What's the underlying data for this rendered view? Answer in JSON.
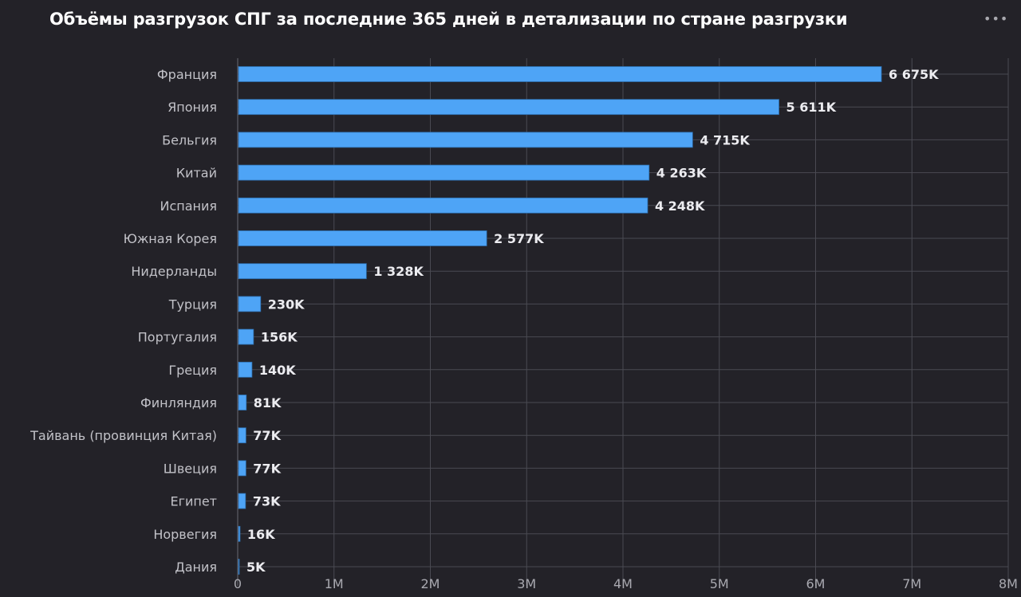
{
  "header": {
    "title": "Объёмы разгрузок СПГ за последние 365 дней в детализации по стране разгрузки",
    "menu_icon": "more-horizontal-icon",
    "menu_glyph": "•••"
  },
  "chart_data": {
    "type": "bar",
    "orientation": "horizontal",
    "title": "Объёмы разгрузок СПГ за последние 365 дней в детализации по стране разгрузки",
    "categories": [
      "Франция",
      "Япония",
      "Бельгия",
      "Китай",
      "Испания",
      "Южная Корея",
      "Нидерланды",
      "Турция",
      "Португалия",
      "Греция",
      "Финляндия",
      "Тайвань (провинция Китая)",
      "Швеция",
      "Египет",
      "Норвегия",
      "Дания"
    ],
    "values": [
      6675000,
      5611000,
      4715000,
      4263000,
      4248000,
      2577000,
      1328000,
      230000,
      156000,
      140000,
      81000,
      77000,
      77000,
      73000,
      16000,
      5000
    ],
    "data_labels": [
      "6 675K",
      "5 611K",
      "4 715K",
      "4 263K",
      "4 248K",
      "2 577K",
      "1 328K",
      "230K",
      "156K",
      "140K",
      "81K",
      "77K",
      "77K",
      "73K",
      "16K",
      "5K"
    ],
    "xlim": [
      0,
      8000000
    ],
    "x_ticks": [
      0,
      1000000,
      2000000,
      3000000,
      4000000,
      5000000,
      6000000,
      7000000,
      8000000
    ],
    "x_tick_labels": [
      "0",
      "1M",
      "2M",
      "3M",
      "4M",
      "5M",
      "6M",
      "7M",
      "8M"
    ],
    "grid": true,
    "bar_color": "#4ea4f6",
    "background": "#232228"
  }
}
